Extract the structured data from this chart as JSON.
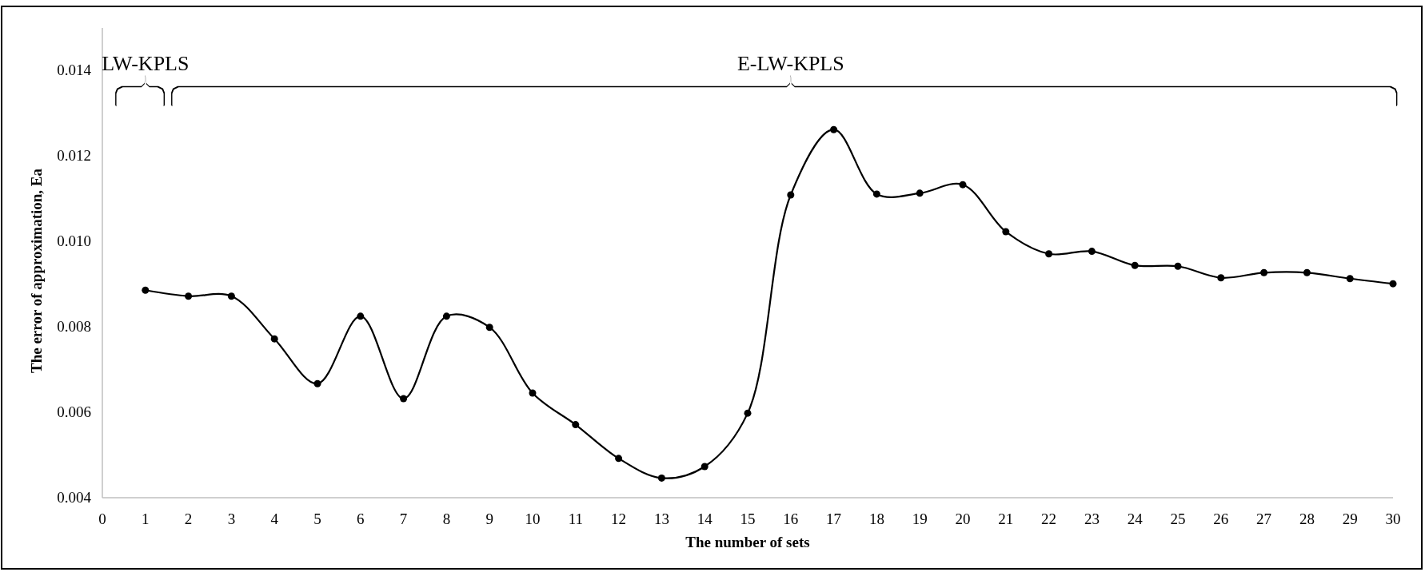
{
  "chart_data": {
    "type": "line",
    "xlabel": "The number  of sets",
    "ylabel": "The error of approximation,  Ea",
    "x": [
      1,
      2,
      3,
      4,
      5,
      6,
      7,
      8,
      9,
      10,
      11,
      12,
      13,
      14,
      15,
      16,
      17,
      18,
      19,
      20,
      21,
      22,
      23,
      24,
      25,
      26,
      27,
      28,
      29,
      30
    ],
    "series": [
      {
        "color": "#000000",
        "values": [
          0.00886,
          0.00872,
          0.00872,
          0.00772,
          0.00667,
          0.00825,
          0.00632,
          0.00825,
          0.00799,
          0.00645,
          0.00571,
          0.00492,
          0.00446,
          0.00473,
          0.00598,
          0.01109,
          0.01262,
          0.01111,
          0.01113,
          0.01133,
          0.01023,
          0.00971,
          0.00977,
          0.00944,
          0.00942,
          0.00915,
          0.00927,
          0.00927,
          0.00913,
          0.00901
        ]
      }
    ],
    "xlim": [
      0,
      30
    ],
    "xticks": [
      0,
      1,
      2,
      3,
      4,
      5,
      6,
      7,
      8,
      9,
      10,
      11,
      12,
      13,
      14,
      15,
      16,
      17,
      18,
      19,
      20,
      21,
      22,
      23,
      24,
      25,
      26,
      27,
      28,
      29,
      30
    ],
    "ylim": [
      0.004,
      0.015
    ],
    "yticks": [
      0.004,
      0.006,
      0.008,
      {
        "value": 0.01,
        "label": "0.010"
      },
      0.012,
      0.014
    ],
    "annotations": [
      "LW-KPLS",
      "E-LW-KPLS"
    ],
    "grid": false,
    "marker": "circle",
    "line_style": "solid"
  }
}
